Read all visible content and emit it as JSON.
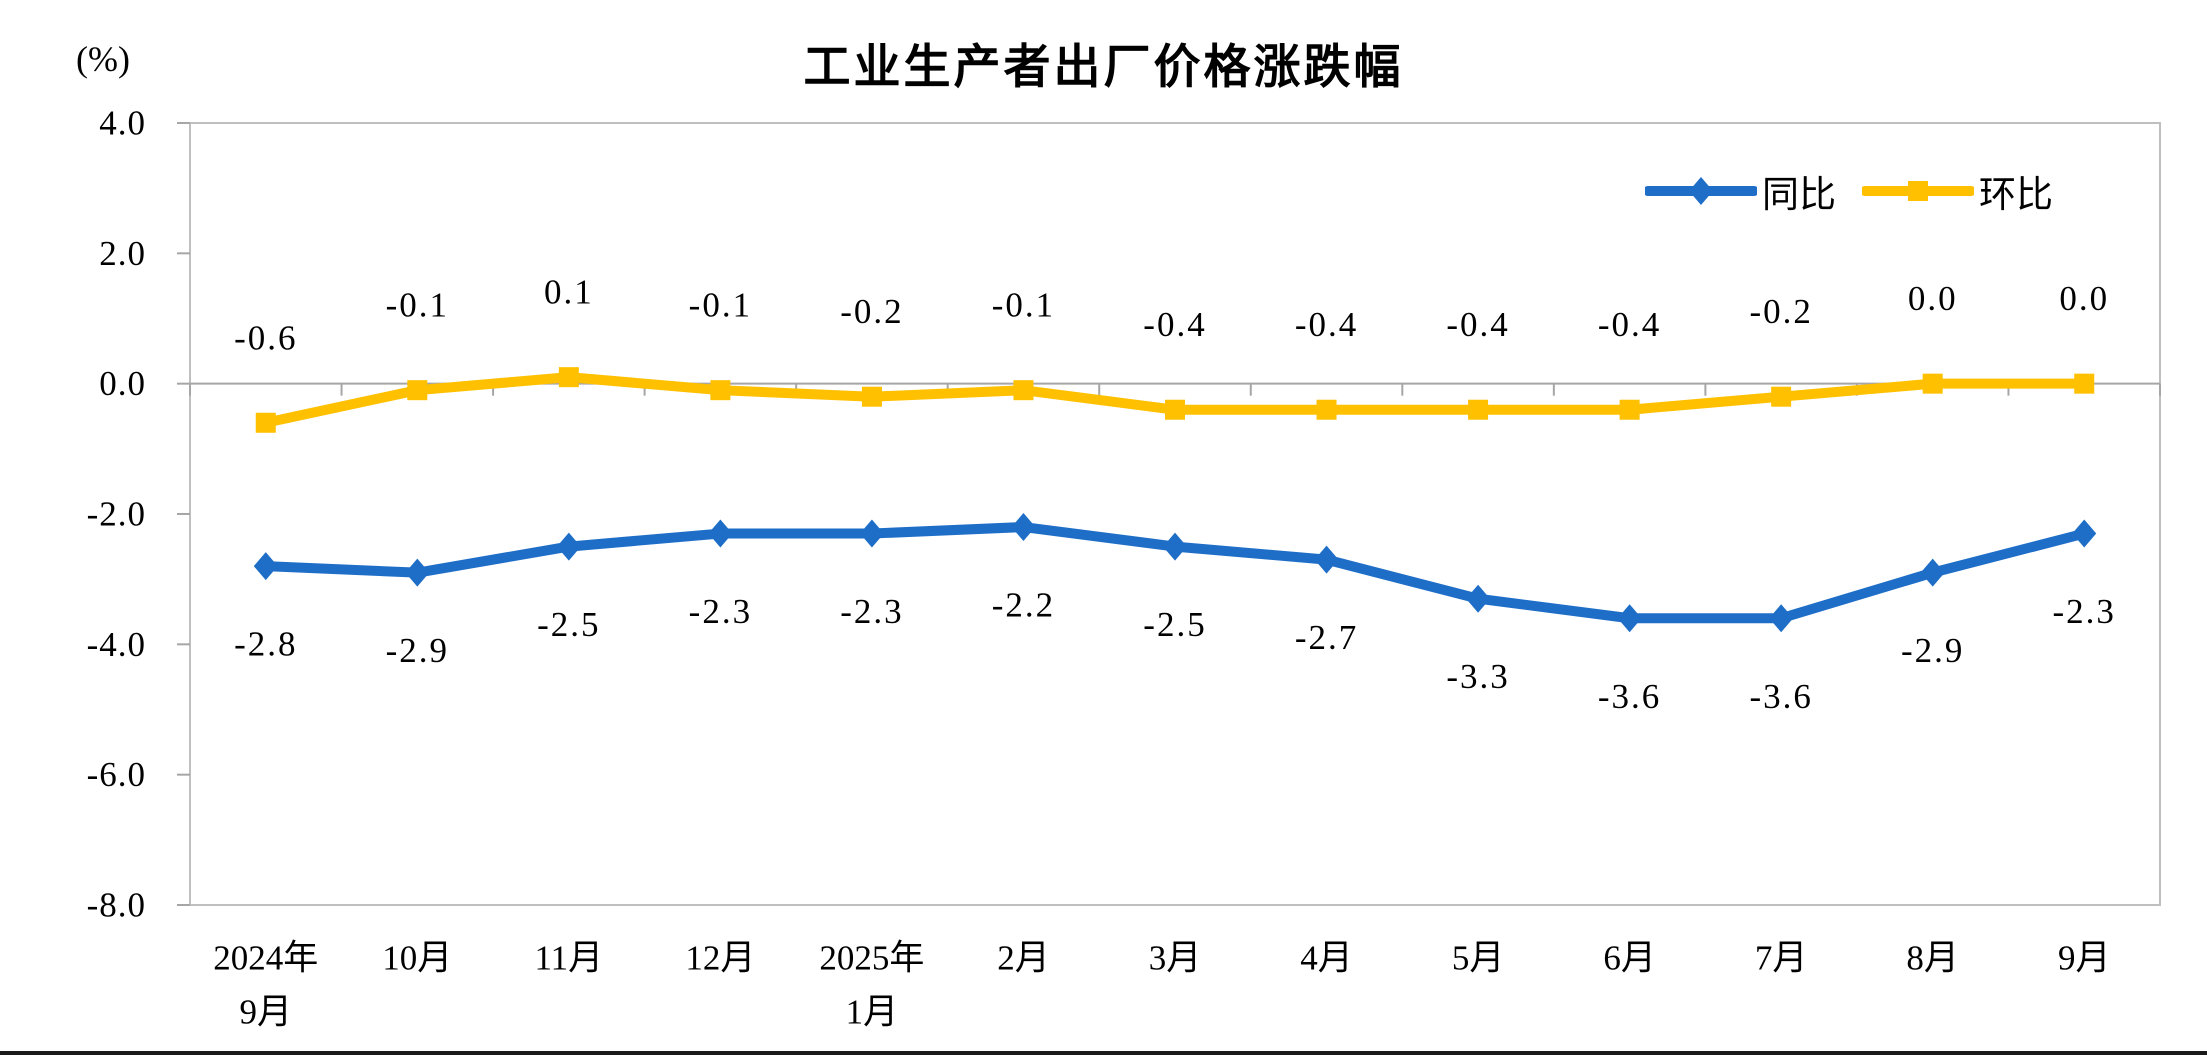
{
  "chart_data": {
    "type": "line",
    "title": "工业生产者出厂价格涨跌幅",
    "unit_label": "(%)",
    "categories": [
      "2024年\n9月",
      "10月",
      "11月",
      "12月",
      "2025年\n1月",
      "2月",
      "3月",
      "4月",
      "5月",
      "6月",
      "7月",
      "8月",
      "9月"
    ],
    "series": [
      {
        "name": "同比",
        "marker": "diamond",
        "color": "#1E6EC8",
        "label_position": "below",
        "values": [
          -2.8,
          -2.9,
          -2.5,
          -2.3,
          -2.3,
          -2.2,
          -2.5,
          -2.7,
          -3.3,
          -3.6,
          -3.6,
          -2.9,
          -2.3
        ]
      },
      {
        "name": "环比",
        "marker": "square",
        "color": "#FFC000",
        "label_position": "above",
        "values": [
          -0.6,
          -0.1,
          0.1,
          -0.1,
          -0.2,
          -0.1,
          -0.4,
          -0.4,
          -0.4,
          -0.4,
          -0.2,
          0.0,
          0.0
        ]
      }
    ],
    "y_axis": {
      "tick_labels": [
        "4.0",
        "2.0",
        "0.0",
        "-2.0",
        "-4.0",
        "-6.0",
        "-8.0"
      ],
      "max": 4,
      "min": -8
    },
    "legend_position": "top-right",
    "grid": "zero-line-only",
    "data_labels": "one-decimal"
  },
  "colors": {
    "yoy_blue": "#1E6EC8",
    "mom_yellow": "#FFC000",
    "axis_border": "#BFBFBF",
    "zero_line": "#A6A6A6",
    "text": "#000000",
    "bottom_rule": "#1A1A1A"
  }
}
